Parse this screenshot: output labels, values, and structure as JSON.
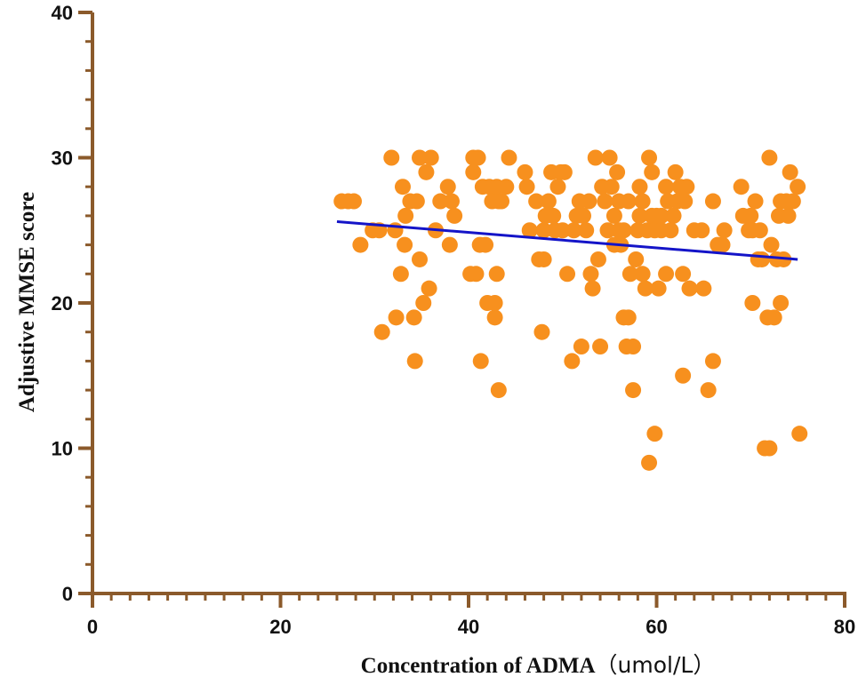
{
  "chart_data": {
    "type": "scatter",
    "title": "",
    "xlabel": "Concentration of ADMA",
    "xlabel_unit": "（umol/L）",
    "ylabel": "Adjustive MMSE score",
    "xlim": [
      0,
      80
    ],
    "ylim": [
      0,
      40
    ],
    "x_ticks": [
      0,
      20,
      40,
      60,
      80
    ],
    "y_ticks": [
      0,
      10,
      20,
      30,
      40
    ],
    "x_minor_step": 2,
    "y_minor_step": 2,
    "grid": false,
    "colors": {
      "axis": "#8B5A2B",
      "points": "#F7901E",
      "trend": "#1414C8"
    },
    "trend_line": {
      "x": [
        26,
        75
      ],
      "y": [
        25.6,
        23.0
      ]
    },
    "points": [
      [
        26.5,
        27
      ],
      [
        27.2,
        27
      ],
      [
        27.8,
        27
      ],
      [
        28.5,
        24
      ],
      [
        29.8,
        25
      ],
      [
        30.5,
        25
      ],
      [
        30.8,
        18
      ],
      [
        31.8,
        30
      ],
      [
        32.2,
        25
      ],
      [
        32.3,
        19
      ],
      [
        32.8,
        22
      ],
      [
        33,
        28
      ],
      [
        33.2,
        24
      ],
      [
        33.3,
        26
      ],
      [
        33.8,
        27
      ],
      [
        34.2,
        19
      ],
      [
        34.3,
        16
      ],
      [
        34.5,
        27
      ],
      [
        34.8,
        30
      ],
      [
        34.8,
        23
      ],
      [
        35.2,
        20
      ],
      [
        35.5,
        29
      ],
      [
        35.8,
        21
      ],
      [
        36,
        30
      ],
      [
        36.5,
        25
      ],
      [
        37,
        27
      ],
      [
        37.8,
        28
      ],
      [
        38,
        24
      ],
      [
        38.2,
        27
      ],
      [
        38.5,
        26
      ],
      [
        40.2,
        22
      ],
      [
        40.5,
        30
      ],
      [
        40.5,
        29
      ],
      [
        40.8,
        22
      ],
      [
        41,
        30
      ],
      [
        41.2,
        24
      ],
      [
        41.3,
        16
      ],
      [
        41.5,
        28
      ],
      [
        41.8,
        24
      ],
      [
        42,
        20
      ],
      [
        42.2,
        28
      ],
      [
        42.5,
        27
      ],
      [
        42.8,
        20
      ],
      [
        42.8,
        19
      ],
      [
        43,
        28
      ],
      [
        43,
        22
      ],
      [
        43.2,
        27
      ],
      [
        43.2,
        14
      ],
      [
        43.5,
        27
      ],
      [
        44,
        28
      ],
      [
        44.3,
        30
      ],
      [
        46,
        29
      ],
      [
        46.2,
        28
      ],
      [
        46.5,
        25
      ],
      [
        47.2,
        27
      ],
      [
        47.5,
        23
      ],
      [
        47.8,
        18
      ],
      [
        48,
        23
      ],
      [
        48,
        25
      ],
      [
        48.2,
        26
      ],
      [
        48.5,
        27
      ],
      [
        48.8,
        29
      ],
      [
        49,
        26
      ],
      [
        49.2,
        25
      ],
      [
        49.5,
        28
      ],
      [
        49.8,
        29
      ],
      [
        50,
        25
      ],
      [
        50.2,
        29
      ],
      [
        50.5,
        22
      ],
      [
        51,
        16
      ],
      [
        51.2,
        25
      ],
      [
        51.5,
        26
      ],
      [
        51.8,
        27
      ],
      [
        52,
        17
      ],
      [
        52.2,
        26
      ],
      [
        52.5,
        25
      ],
      [
        52.8,
        27
      ],
      [
        53,
        22
      ],
      [
        53.2,
        21
      ],
      [
        53.5,
        30
      ],
      [
        53.8,
        23
      ],
      [
        54,
        17
      ],
      [
        54.2,
        28
      ],
      [
        54.5,
        27
      ],
      [
        54.8,
        25
      ],
      [
        55,
        30
      ],
      [
        55.2,
        28
      ],
      [
        55.5,
        26
      ],
      [
        55.5,
        24
      ],
      [
        55.8,
        29
      ],
      [
        56,
        25
      ],
      [
        56,
        27
      ],
      [
        56.2,
        24
      ],
      [
        56.5,
        25
      ],
      [
        56.5,
        19
      ],
      [
        56.8,
        17
      ],
      [
        57,
        27
      ],
      [
        57,
        19
      ],
      [
        57.2,
        22
      ],
      [
        57.5,
        17
      ],
      [
        57.5,
        14
      ],
      [
        57.8,
        23
      ],
      [
        58,
        25
      ],
      [
        58.2,
        26
      ],
      [
        58.2,
        28
      ],
      [
        58.5,
        22
      ],
      [
        58.5,
        27
      ],
      [
        58.8,
        21
      ],
      [
        59,
        25
      ],
      [
        59.2,
        30
      ],
      [
        59.2,
        9
      ],
      [
        59.5,
        26
      ],
      [
        59.5,
        29
      ],
      [
        59.8,
        11
      ],
      [
        59.8,
        25
      ],
      [
        60,
        26
      ],
      [
        60.2,
        21
      ],
      [
        60.5,
        26
      ],
      [
        60.5,
        25
      ],
      [
        61,
        28
      ],
      [
        61,
        22
      ],
      [
        61.2,
        27
      ],
      [
        61.5,
        25
      ],
      [
        61.8,
        26
      ],
      [
        62,
        29
      ],
      [
        62.2,
        27
      ],
      [
        62.5,
        28
      ],
      [
        62.8,
        15
      ],
      [
        62.8,
        22
      ],
      [
        63,
        27
      ],
      [
        63.2,
        28
      ],
      [
        63.5,
        21
      ],
      [
        64,
        25
      ],
      [
        64.8,
        25
      ],
      [
        65,
        21
      ],
      [
        65.5,
        14
      ],
      [
        66,
        16
      ],
      [
        66,
        27
      ],
      [
        66.5,
        24
      ],
      [
        67,
        24
      ],
      [
        67.2,
        25
      ],
      [
        69,
        28
      ],
      [
        69.2,
        26
      ],
      [
        69.8,
        25
      ],
      [
        70,
        26
      ],
      [
        70.2,
        25
      ],
      [
        70.2,
        20
      ],
      [
        70.5,
        27
      ],
      [
        70.8,
        23
      ],
      [
        71,
        25
      ],
      [
        71.2,
        23
      ],
      [
        71.5,
        10
      ],
      [
        71.8,
        19
      ],
      [
        72,
        30
      ],
      [
        72,
        10
      ],
      [
        72.2,
        24
      ],
      [
        72.5,
        19
      ],
      [
        72.8,
        23
      ],
      [
        73,
        26
      ],
      [
        73.2,
        27
      ],
      [
        73.2,
        20
      ],
      [
        73.5,
        23
      ],
      [
        73.8,
        27
      ],
      [
        74,
        26
      ],
      [
        74.2,
        29
      ],
      [
        74.5,
        27
      ],
      [
        75,
        28
      ],
      [
        75.2,
        11
      ]
    ]
  }
}
